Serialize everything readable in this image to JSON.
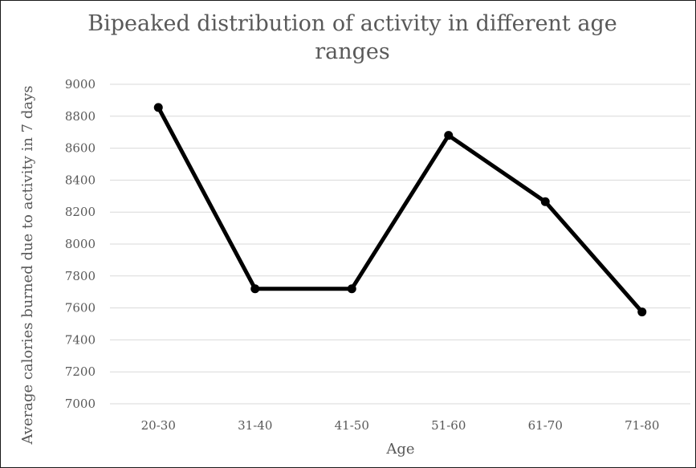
{
  "chart_data": {
    "type": "line",
    "title_lines": [
      "Bipeaked distribution of activity in different age",
      "ranges"
    ],
    "xlabel": "Age",
    "ylabel": "Average calories burned due to activity in 7 days",
    "categories": [
      "20-30",
      "31-40",
      "41-50",
      "51-60",
      "61-70",
      "71-80"
    ],
    "series": [
      {
        "values": [
          8855,
          7720,
          7720,
          8680,
          8265,
          7575
        ]
      }
    ],
    "ylim": [
      7000,
      9000
    ],
    "yticks": [
      7000,
      7200,
      7400,
      7600,
      7800,
      8000,
      8200,
      8400,
      8600,
      8800,
      9000
    ],
    "grid": true,
    "legend": "none",
    "colors": {
      "line": "#000000",
      "grid": "#d9d9d9",
      "text": "#595959"
    }
  }
}
